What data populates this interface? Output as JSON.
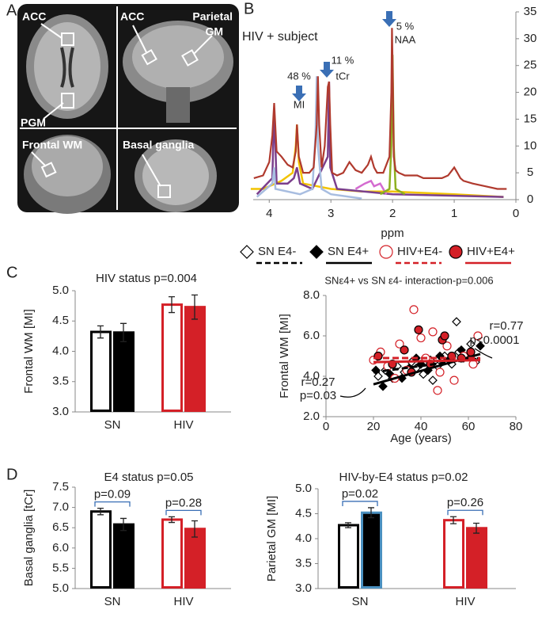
{
  "panel_labels": [
    "A",
    "B",
    "C",
    "D"
  ],
  "mri_labels": [
    "ACC",
    "PGM",
    "ACC",
    "Parietal",
    "GM",
    "Frontal WM",
    "Basal ganglia"
  ],
  "legend": [
    {
      "name": "SN E4-",
      "marker": "diamond",
      "fill": "#ffffff",
      "stroke": "#000000",
      "dash": true
    },
    {
      "name": "SN E4+",
      "marker": "diamond",
      "fill": "#000000",
      "stroke": "#000000",
      "dash": false
    },
    {
      "name": "HIV+E4-",
      "marker": "circle",
      "fill": "#ffffff",
      "stroke": "#d42027",
      "dash": true
    },
    {
      "name": "HIV+E4+",
      "marker": "circle",
      "fill": "#d42027",
      "stroke": "#000000",
      "dash": false
    }
  ],
  "chart_data": [
    {
      "type": "line",
      "subtitle": "HIV + subject",
      "x_label": "ppm",
      "annotations": [
        "48 %",
        "MI",
        "11 %",
        "tCr",
        "5 %",
        "NAA"
      ],
      "xlim": [
        4.26,
        0
      ],
      "xticks": [
        4,
        3,
        2,
        1,
        0
      ],
      "ylim": [
        0,
        35
      ],
      "yticks": [
        0,
        5,
        10,
        15,
        20,
        25,
        30,
        35
      ],
      "series": [
        {
          "color": "#f2c300",
          "x": [
            4.3,
            4.1,
            4.0,
            3.8,
            3.62,
            3.57,
            3.55,
            3.52,
            3.45,
            3.0,
            2.5,
            2.0,
            1.0,
            0.2
          ],
          "values": [
            2,
            2,
            2.5,
            3.5,
            5,
            10,
            14,
            7,
            3,
            2,
            1.5,
            1.5,
            1,
            0.5
          ]
        },
        {
          "color": "#7b3f8c",
          "x": [
            4.2,
            3.95,
            3.92,
            3.88,
            3.7,
            3.6,
            3.55,
            3.5,
            3.3,
            3.05,
            3.03,
            3.01,
            2.9,
            2.0,
            0.2
          ],
          "values": [
            1,
            4,
            17,
            3,
            3,
            4,
            6,
            3,
            2,
            8,
            22,
            6,
            2,
            1,
            0.5
          ]
        },
        {
          "color": "#a8bde0",
          "x": [
            4.2,
            3.95,
            3.92,
            3.9,
            3.5,
            3.3,
            3.25,
            3.23,
            3.21,
            3.15,
            3.0,
            2.5
          ],
          "values": [
            0.5,
            3,
            6,
            2,
            1,
            2,
            12,
            23,
            10,
            2,
            1,
            0.2
          ]
        },
        {
          "color": "#d46bd0",
          "x": [
            2.6,
            2.45,
            2.35,
            2.3,
            2.2,
            2.1
          ],
          "values": [
            2,
            3,
            3.5,
            2.5,
            3,
            1
          ]
        },
        {
          "color": "#8db020",
          "x": [
            2.2,
            2.05,
            2.02,
            2.01,
            2.0,
            1.98,
            1.95,
            1.8
          ],
          "values": [
            1,
            2,
            10,
            25,
            27,
            10,
            2,
            1
          ]
        },
        {
          "color": "#b03a2e",
          "x": [
            4.25,
            4.1,
            4.0,
            3.95,
            3.92,
            3.88,
            3.8,
            3.7,
            3.62,
            3.57,
            3.55,
            3.52,
            3.45,
            3.35,
            3.28,
            3.23,
            3.21,
            3.19,
            3.15,
            3.1,
            3.05,
            3.03,
            3.01,
            2.98,
            2.9,
            2.8,
            2.7,
            2.6,
            2.5,
            2.4,
            2.35,
            2.3,
            2.25,
            2.15,
            2.05,
            2.02,
            2.01,
            2.0,
            1.98,
            1.95,
            1.9,
            1.8,
            1.7,
            1.6,
            1.5,
            1.4,
            1.3,
            1.2,
            1.1,
            1.0,
            0.95,
            0.9,
            0.85,
            0.7,
            0.5,
            0.3,
            0.15
          ],
          "values": [
            4,
            4.5,
            7,
            12,
            18,
            9,
            8,
            6.5,
            6,
            9,
            14,
            8,
            5,
            5,
            6,
            14,
            23,
            14,
            6,
            10,
            21,
            22,
            14,
            5,
            4.5,
            5,
            7,
            5.5,
            5,
            6.5,
            8,
            6,
            5,
            5,
            8,
            20,
            32,
            26,
            8,
            5.5,
            5,
            4.5,
            4.5,
            4.5,
            4,
            4,
            4,
            4,
            4.5,
            6,
            5,
            4,
            3.5,
            3,
            2.5,
            2,
            2
          ]
        }
      ]
    },
    {
      "type": "bar",
      "title": "HIV status p=0.004",
      "y_label": "Frontal WM [MI]",
      "categories": [
        "SN",
        "HIV"
      ],
      "ylim": [
        3,
        5
      ],
      "yticks": [
        {
          "value": 3,
          "label": "3.0"
        },
        3.5,
        {
          "value": 4,
          "label": "4.0"
        },
        4.5,
        {
          "value": 5,
          "label": "5.0"
        }
      ],
      "series": [
        {
          "fill": [
            "#ffffff",
            "#ffffff"
          ],
          "stroke": [
            "#000000",
            "#d42027"
          ],
          "values": [
            4.32,
            4.77
          ],
          "errors": [
            0.1,
            0.13
          ]
        },
        {
          "fill": [
            "#000000",
            "#d42027"
          ],
          "stroke": [
            "#000000",
            "#d42027"
          ],
          "values": [
            4.31,
            4.73
          ],
          "errors": [
            0.15,
            0.2
          ]
        }
      ]
    },
    {
      "type": "scatter",
      "title": "SNε4+ vs SN ε4- interaction-p=0.006",
      "x_label": "Age (years)",
      "y_label": "Frontal WM [MI]",
      "annotations": [
        "r=0.77",
        "p<0.0001",
        "r=0.27",
        "p=0.03"
      ],
      "xlim": [
        0,
        80
      ],
      "xticks": [
        0,
        20,
        40,
        60,
        80
      ],
      "ylim": [
        2,
        8
      ],
      "yticks": [
        {
          "value": 2,
          "label": "2.0"
        },
        {
          "value": 4,
          "label": "4.0"
        },
        {
          "value": 6,
          "label": "6.0"
        },
        {
          "value": 8,
          "label": "8.0"
        }
      ],
      "series": [
        {
          "marker": "diamond",
          "fill": "#ffffff",
          "stroke": "#000000",
          "dash": true,
          "x": [
            22,
            25,
            28,
            30,
            33,
            36,
            38,
            41,
            44,
            47,
            50,
            53,
            56,
            58,
            61,
            63,
            55,
            45
          ],
          "values": [
            4.0,
            4.3,
            3.9,
            4.5,
            4.2,
            4.7,
            4.4,
            4.1,
            4.8,
            4.5,
            5.0,
            4.6,
            5.2,
            4.9,
            5.6,
            4.7,
            6.7,
            3.8
          ],
          "fit_x": [
            20,
            65
          ],
          "fit_values": [
            4.2,
            4.9
          ]
        },
        {
          "marker": "diamond",
          "fill": "#000000",
          "stroke": "#000000",
          "dash": false,
          "x": [
            24,
            27,
            32,
            35,
            40,
            43,
            48,
            52,
            57,
            60,
            65,
            38,
            21
          ],
          "values": [
            3.5,
            4.1,
            3.9,
            4.4,
            4.6,
            4.3,
            5.0,
            4.8,
            5.3,
            5.0,
            5.5,
            4.9,
            4.3
          ],
          "fit_x": [
            20,
            65
          ],
          "fit_values": [
            3.6,
            5.1
          ]
        },
        {
          "marker": "circle",
          "fill": "#ffffff",
          "stroke": "#d42027",
          "dash": true,
          "x": [
            20,
            23,
            26,
            31,
            34,
            37,
            40,
            42,
            45,
            48,
            51,
            54,
            58,
            62,
            64,
            29,
            47
          ],
          "values": [
            4.8,
            5.2,
            4.5,
            5.6,
            4.3,
            7.3,
            5.9,
            4.9,
            6.2,
            4.2,
            5.5,
            3.8,
            5.0,
            4.6,
            6.0,
            3.9,
            3.3
          ],
          "fit_x": [
            20,
            65
          ],
          "fit_values": [
            4.9,
            4.9
          ]
        },
        {
          "marker": "circle",
          "fill": "#d42027",
          "stroke": "#000000",
          "dash": false,
          "x": [
            22,
            28,
            33,
            39,
            44,
            49,
            53,
            57,
            61,
            50,
            36
          ],
          "values": [
            5.0,
            4.6,
            5.3,
            6.3,
            4.6,
            5.8,
            5.0,
            4.9,
            5.2,
            6.0,
            4.2
          ],
          "fit_x": [
            20,
            65
          ],
          "fit_values": [
            4.7,
            4.8
          ]
        }
      ]
    },
    {
      "type": "bar",
      "title": "E4 status p=0.05",
      "y_label": "Basal ganglia [tCr]",
      "categories": [
        "SN",
        "HIV"
      ],
      "annotations": [
        "p=0.09",
        "p=0.28"
      ],
      "ylim": [
        5,
        7.5
      ],
      "yticks": [
        {
          "value": 5,
          "label": "5.0"
        },
        5.5,
        {
          "value": 6,
          "label": "6.0"
        },
        6.5,
        {
          "value": 7,
          "label": "7.0"
        },
        7.5
      ],
      "series": [
        {
          "fill": [
            "#ffffff",
            "#ffffff"
          ],
          "stroke": [
            "#000000",
            "#d42027"
          ],
          "values": [
            6.9,
            6.7
          ],
          "errors": [
            0.08,
            0.07
          ]
        },
        {
          "fill": [
            "#000000",
            "#d42027"
          ],
          "stroke": [
            "#000000",
            "#d42027"
          ],
          "values": [
            6.58,
            6.47
          ],
          "errors": [
            0.15,
            0.2
          ]
        }
      ]
    },
    {
      "type": "bar",
      "title": "HIV-by-E4 status p=0.02",
      "y_label": "Parietal GM [MI]",
      "categories": [
        "SN",
        "HIV"
      ],
      "annotations": [
        "p=0.02",
        "p=0.26"
      ],
      "ylim": [
        3,
        5
      ],
      "yticks": [
        {
          "value": 3,
          "label": "3.0"
        },
        3.5,
        {
          "value": 4,
          "label": "4.0"
        },
        4.5,
        {
          "value": 5,
          "label": "5.0"
        }
      ],
      "series": [
        {
          "fill": [
            "#ffffff",
            "#ffffff"
          ],
          "stroke": [
            "#000000",
            "#d42027"
          ],
          "values": [
            4.27,
            4.37
          ],
          "errors": [
            0.05,
            0.07
          ]
        },
        {
          "fill": [
            "#000000",
            "#d42027"
          ],
          "stroke": [
            "#4a90c0",
            "#d42027"
          ],
          "values": [
            4.52,
            4.21
          ],
          "errors": [
            0.1,
            0.1
          ]
        }
      ]
    }
  ]
}
